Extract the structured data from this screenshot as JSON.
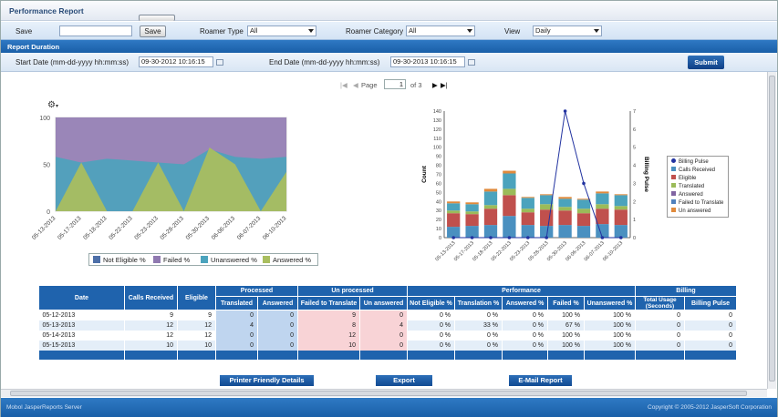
{
  "window": {
    "title": "Performance Report"
  },
  "filters": {
    "save_label": "Save",
    "save_value": "",
    "save_button": "Save",
    "roamer_type_label": "Roamer Type",
    "roamer_type_value": "All",
    "roamer_category_label": "Roamer Category",
    "roamer_category_value": "All",
    "view_label": "View",
    "view_value": "Daily"
  },
  "duration": {
    "title": "Report Duration",
    "start_label": "Start Date (mm-dd-yyyy hh:mm:ss)",
    "start_value": "09-30-2012 10:16:15",
    "end_label": "End Date (mm-dd-yyyy hh:mm:ss)",
    "end_value": "09-30-2013 10:16:15",
    "submit": "Submit"
  },
  "pager": {
    "page_label": "Page",
    "page": "1",
    "of_label": "of 3"
  },
  "icons": {
    "settings": "gear-icon",
    "calendar": "calendar-icon",
    "first": "first-page-icon",
    "prev": "prev-page-icon",
    "next": "next-page-icon",
    "last": "last-page-icon"
  },
  "colors": {
    "not_eligible": "#4d6fa8",
    "failed": "#8f79b0",
    "unanswered": "#4ba3bd",
    "answered": "#a9be5f",
    "eligible": "#c0504d",
    "calls_received": "#4a90c0",
    "translated": "#9bbb59",
    "failed_to_translate": "#4f81bd",
    "un_answered": "#e08a3c",
    "billing_pulse": "#2233a0"
  },
  "chart_data": [
    {
      "type": "area",
      "categories": [
        "05-13-2013",
        "05-17-2013",
        "05-18-2013",
        "05-22-2013",
        "05-23-2013",
        "05-28-2013",
        "05-30-2013",
        "06-06-2013",
        "06-07-2013",
        "06-10-2013"
      ],
      "series": [
        {
          "name": "Not Eligible %",
          "values": [
            0,
            0,
            0,
            0,
            0,
            0,
            0,
            0,
            0,
            0
          ]
        },
        {
          "name": "Failed %",
          "values": [
            100,
            100,
            100,
            100,
            100,
            100,
            100,
            100,
            100,
            100
          ]
        },
        {
          "name": "Unanswered %",
          "values": [
            58,
            52,
            56,
            54,
            52,
            50,
            66,
            58,
            56,
            58
          ]
        },
        {
          "name": "Answered %",
          "values": [
            0,
            52,
            0,
            0,
            52,
            0,
            68,
            50,
            0,
            42
          ]
        }
      ],
      "ylim": [
        0,
        100
      ],
      "yticks": [
        0,
        50,
        100
      ],
      "legend": "bottom"
    },
    {
      "type": "bar",
      "stacked": true,
      "categories": [
        "05-13-2013",
        "05-17-2013",
        "05-18-2013",
        "05-22-2013",
        "05-23-2013",
        "05-28-2013",
        "05-30-2013",
        "06-06-2013",
        "06-07-2013",
        "06-10-2013"
      ],
      "series": [
        {
          "name": "Eligible",
          "values": [
            12,
            13,
            14,
            24,
            14,
            13,
            14,
            13,
            15,
            14
          ]
        },
        {
          "name": "Calls Received",
          "values": [
            15,
            13,
            18,
            23,
            14,
            18,
            16,
            14,
            17,
            17
          ]
        },
        {
          "name": "Translated",
          "values": [
            3,
            3,
            4,
            7,
            4,
            6,
            4,
            5,
            5,
            4
          ]
        },
        {
          "name": "Failed to Translate",
          "values": [
            8,
            8,
            15,
            17,
            12,
            10,
            9,
            10,
            12,
            12
          ]
        },
        {
          "name": "Un answered",
          "values": [
            2,
            2,
            3,
            3,
            1,
            1,
            2,
            1,
            2,
            1
          ]
        }
      ],
      "line_series": {
        "name": "Billing Pulse",
        "values": [
          0,
          0,
          0,
          0,
          0,
          0,
          7,
          3,
          0,
          0
        ]
      },
      "ylabel": "Count",
      "y2label": "Billing Pulse",
      "ylim": [
        0,
        140
      ],
      "yticks": [
        0,
        10,
        20,
        30,
        40,
        50,
        60,
        70,
        80,
        90,
        100,
        110,
        120,
        130,
        140
      ],
      "y2lim": [
        0,
        7
      ],
      "y2ticks": [
        0,
        1,
        2,
        3,
        4,
        5,
        6,
        7
      ],
      "legend": "right"
    }
  ],
  "legend_left": [
    "Not Eligible %",
    "Failed %",
    "Unanswered %",
    "Answered %"
  ],
  "legend_right": [
    "Billing Pulse",
    "Calls Received",
    "Eligible",
    "Translated",
    "Answered",
    "Failed to Translate",
    "Un answered"
  ],
  "table": {
    "group_headers": {
      "processed": "Processed",
      "unprocessed": "Un processed",
      "performance": "Performance",
      "billing": "Billing"
    },
    "headers": {
      "date": "Date",
      "calls_received": "Calls Received",
      "eligible": "Eligible",
      "translated": "Translated",
      "answered": "Answered",
      "failed_to_translate": "Failed to Translate",
      "un_answered": "Un answered",
      "not_eligible_pct": "Not Eligible %",
      "translation_pct": "Translation %",
      "answered_pct": "Answered %",
      "failed_pct": "Failed %",
      "unanswered_pct": "Unanswered %",
      "total_usage": "Total Usage (Seconds)",
      "billing_pulse": "Billing Pulse"
    },
    "rows": [
      [
        "05-12-2013",
        "9",
        "9",
        "0",
        "0",
        "9",
        "0",
        "0 %",
        "0 %",
        "0 %",
        "100 %",
        "100 %",
        "0",
        "0"
      ],
      [
        "05-13-2013",
        "12",
        "12",
        "4",
        "0",
        "8",
        "4",
        "0 %",
        "33 %",
        "0 %",
        "67 %",
        "100 %",
        "0",
        "0"
      ],
      [
        "05-14-2013",
        "12",
        "12",
        "0",
        "0",
        "12",
        "0",
        "0 %",
        "0 %",
        "0 %",
        "100 %",
        "100 %",
        "0",
        "0"
      ],
      [
        "05-15-2013",
        "10",
        "10",
        "0",
        "0",
        "10",
        "0",
        "0 %",
        "0 %",
        "0 %",
        "100 %",
        "100 %",
        "0",
        "0"
      ]
    ]
  },
  "actions": {
    "printer": "Printer Friendly Details",
    "export": "Export",
    "email": "E-Mail Report"
  },
  "status": {
    "left": "Mobol JasperReports Server",
    "right": "Copyright © 2005-2012 JasperSoft Corporation"
  }
}
